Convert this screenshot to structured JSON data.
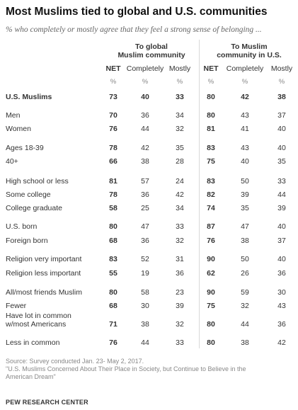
{
  "title": "Most Muslims tied to global and U.S. communities",
  "subtitle": "% who completely or mostly agree that they feel a strong sense of belonging ...",
  "groups": [
    {
      "line1": "To global",
      "line2": "Muslim community"
    },
    {
      "line1": "To Muslim",
      "line2": "community in U.S."
    }
  ],
  "columns": [
    "NET",
    "Completely",
    "Mostly",
    "NET",
    "Completely",
    "Mostly"
  ],
  "pct_symbol": "%",
  "rows": [
    {
      "label": [
        "U.S. Muslims"
      ],
      "bold": true,
      "values": [
        73,
        40,
        33,
        80,
        42,
        38
      ]
    },
    {
      "label": [
        "Men"
      ],
      "values": [
        70,
        36,
        34,
        80,
        43,
        37
      ]
    },
    {
      "label": [
        "Women"
      ],
      "values": [
        76,
        44,
        32,
        81,
        41,
        40
      ]
    },
    {
      "label": [
        "Ages 18-39"
      ],
      "values": [
        78,
        42,
        35,
        83,
        43,
        40
      ]
    },
    {
      "label": [
        "40+"
      ],
      "values": [
        66,
        38,
        28,
        75,
        40,
        35
      ]
    },
    {
      "label": [
        "High school or less"
      ],
      "values": [
        81,
        57,
        24,
        83,
        50,
        33
      ]
    },
    {
      "label": [
        "Some college"
      ],
      "values": [
        78,
        36,
        42,
        82,
        39,
        44
      ]
    },
    {
      "label": [
        "College graduate"
      ],
      "values": [
        58,
        25,
        34,
        74,
        35,
        39
      ]
    },
    {
      "label": [
        "U.S. born"
      ],
      "values": [
        80,
        47,
        33,
        87,
        47,
        40
      ]
    },
    {
      "label": [
        "Foreign born"
      ],
      "values": [
        68,
        36,
        32,
        76,
        38,
        37
      ]
    },
    {
      "label": [
        "Religion very important"
      ],
      "values": [
        83,
        52,
        31,
        90,
        50,
        40
      ]
    },
    {
      "label": [
        "Religion less important"
      ],
      "values": [
        55,
        19,
        36,
        62,
        26,
        36
      ]
    },
    {
      "label": [
        "All/most friends Muslim"
      ],
      "values": [
        80,
        58,
        23,
        90,
        59,
        30
      ]
    },
    {
      "label": [
        "Fewer"
      ],
      "values": [
        68,
        30,
        39,
        75,
        32,
        43
      ]
    },
    {
      "label": [
        "Have lot in common",
        "w/most Americans"
      ],
      "values": [
        71,
        38,
        32,
        80,
        44,
        36
      ]
    },
    {
      "label": [
        "Less in common"
      ],
      "values": [
        76,
        44,
        33,
        80,
        38,
        42
      ]
    }
  ],
  "source": [
    "Source: Survey conducted Jan. 23- May 2, 2017.",
    "\"U.S. Muslims Concerned About Their Place in Society, but Continue to Believe in the",
    "American Dream\""
  ],
  "brand": "PEW RESEARCH CENTER",
  "chart_data": {
    "type": "table",
    "title": "Most Muslims tied to global and U.S. communities",
    "subtitle": "% who completely or mostly agree that they feel a strong sense of belonging ...",
    "column_groups": [
      "To global Muslim community",
      "To Muslim community in U.S."
    ],
    "columns": [
      "NET",
      "Completely",
      "Mostly",
      "NET",
      "Completely",
      "Mostly"
    ],
    "categories": [
      "U.S. Muslims",
      "Men",
      "Women",
      "Ages 18-39",
      "40+",
      "High school or less",
      "Some college",
      "College graduate",
      "U.S. born",
      "Foreign born",
      "Religion very important",
      "Religion less important",
      "All/most friends Muslim",
      "Fewer",
      "Have lot in common w/most Americans",
      "Less in common"
    ],
    "series": [
      {
        "name": "To global Muslim community — NET",
        "values": [
          73,
          70,
          76,
          78,
          66,
          81,
          78,
          58,
          80,
          68,
          83,
          55,
          80,
          68,
          71,
          76
        ]
      },
      {
        "name": "To global Muslim community — Completely",
        "values": [
          40,
          36,
          44,
          42,
          38,
          57,
          36,
          25,
          47,
          36,
          52,
          19,
          58,
          30,
          38,
          44
        ]
      },
      {
        "name": "To global Muslim community — Mostly",
        "values": [
          33,
          34,
          32,
          35,
          28,
          24,
          42,
          34,
          33,
          32,
          31,
          36,
          23,
          39,
          32,
          33
        ]
      },
      {
        "name": "To Muslim community in U.S. — NET",
        "values": [
          80,
          80,
          81,
          83,
          75,
          83,
          82,
          74,
          87,
          76,
          90,
          62,
          90,
          75,
          80,
          80
        ]
      },
      {
        "name": "To Muslim community in U.S. — Completely",
        "values": [
          42,
          43,
          41,
          43,
          40,
          50,
          39,
          35,
          47,
          38,
          50,
          26,
          59,
          32,
          44,
          38
        ]
      },
      {
        "name": "To Muslim community in U.S. — Mostly",
        "values": [
          38,
          37,
          40,
          40,
          35,
          33,
          44,
          39,
          40,
          37,
          40,
          36,
          30,
          43,
          36,
          42
        ]
      }
    ]
  }
}
